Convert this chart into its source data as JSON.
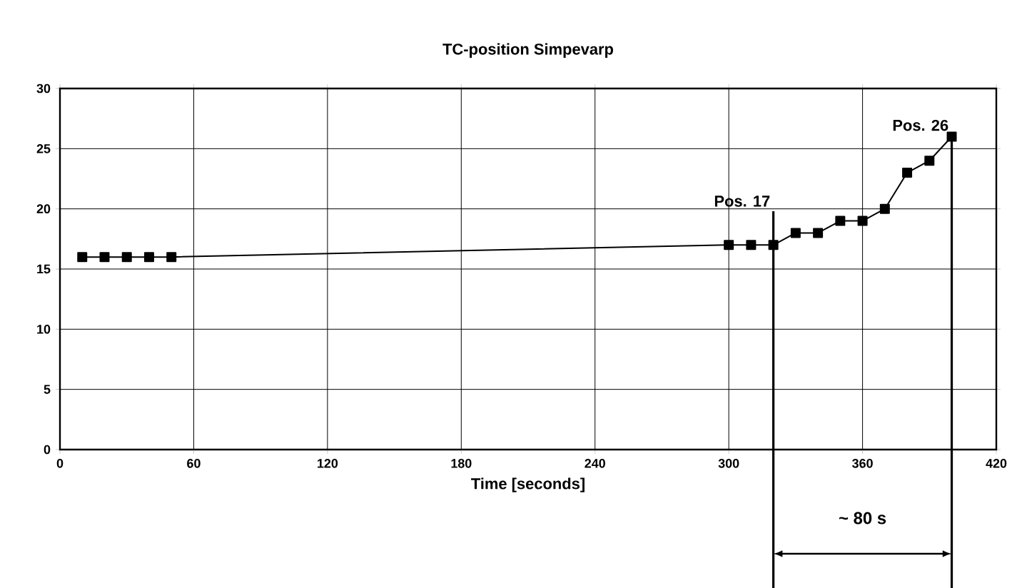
{
  "chart_data": {
    "type": "line",
    "title": "TC-position Simpevarp",
    "xlabel": "Time [seconds]",
    "x": [
      10,
      20,
      30,
      40,
      50,
      300,
      310,
      320,
      330,
      340,
      350,
      360,
      370,
      380,
      390,
      400
    ],
    "series": [
      {
        "color": "#000000",
        "values": [
          16,
          16,
          16,
          16,
          16,
          17,
          17,
          17,
          18,
          18,
          19,
          19,
          20,
          23,
          24,
          26
        ]
      }
    ],
    "xlim": [
      0,
      420
    ],
    "xticks": [
      0,
      60,
      120,
      180,
      240,
      300,
      360,
      420
    ],
    "ylim": [
      0,
      30
    ],
    "yticks": [
      0,
      5,
      10,
      15,
      20,
      25,
      30
    ],
    "grid": true,
    "marker": "square",
    "line_style": "solid",
    "ref_lines": [
      {
        "axis": "x",
        "value": 320,
        "label": "Pos. 17",
        "color": "#000000"
      },
      {
        "axis": "x",
        "value": 400,
        "label": "Pos. 26",
        "color": "#000000"
      }
    ],
    "annotations": [
      "~ 80 s"
    ]
  }
}
